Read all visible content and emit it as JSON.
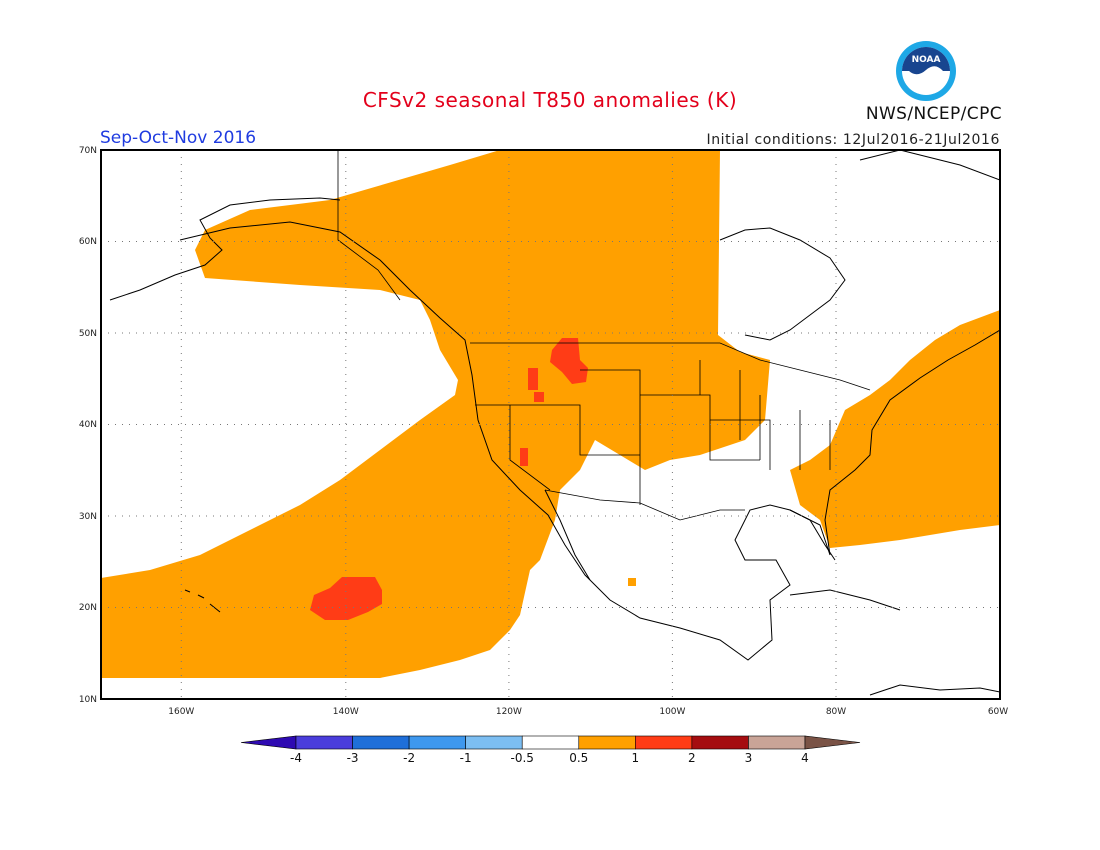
{
  "title": "CFSv2 seasonal T850 anomalies (K)",
  "season": "Sep-Oct-Nov 2016",
  "initial_conditions": "Initial conditions: 12Jul2016-21Jul2016",
  "agency": "NWS/NCEP/CPC",
  "logo_text": "NOAA",
  "map": {
    "lon_range": [
      -172,
      -60
    ],
    "lat_range": [
      10,
      70
    ],
    "lat_ticks": [
      "10N",
      "20N",
      "30N",
      "40N",
      "50N",
      "60N",
      "70N"
    ],
    "lon_ticks": [
      "160W",
      "140W",
      "120W",
      "100W",
      "80W",
      "60W"
    ],
    "anomaly_colors": {
      "0.5-1": "#ffa000",
      "1-2": "#ff3c16"
    }
  },
  "colorbar": {
    "colors": [
      "#2e0ab2",
      "#4a3ddb",
      "#1f6fd9",
      "#3e98ee",
      "#7cbef2",
      "#ffffff",
      "#ffa000",
      "#ff3c16",
      "#a50d10",
      "#c9a497",
      "#7a5346"
    ],
    "labels": [
      "-4",
      "-3",
      "-2",
      "-1",
      "-0.5",
      "0.5",
      "1",
      "2",
      "3",
      "4"
    ]
  }
}
